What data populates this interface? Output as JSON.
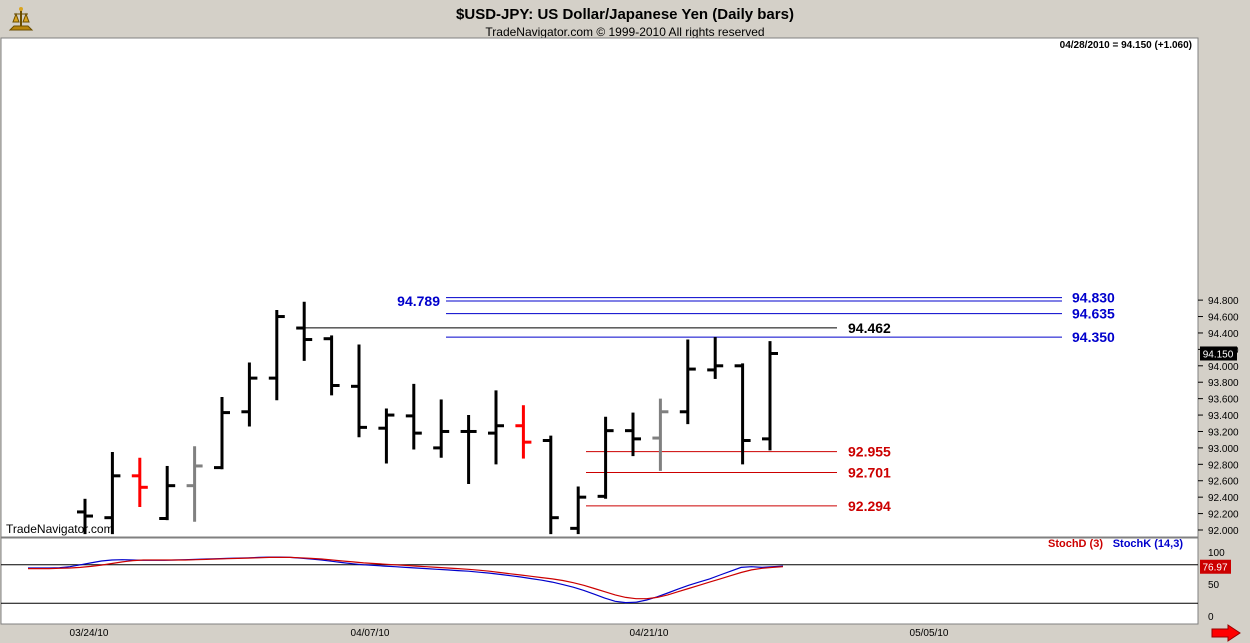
{
  "header": {
    "title": "$USD-JPY:  US Dollar/Japanese Yen  (Daily bars)",
    "copyright": "TradeNavigator.com © 1999-2010 All rights reserved",
    "last_bar": "04/28/2010 = 94.150 (+1.060)",
    "watermark": "TradeNavigator.com"
  },
  "colors": {
    "background": "#ffffff",
    "frame": "#d4d0c8",
    "bar_default": "#000000",
    "bar_red": "#ff0000",
    "bar_gray": "#808080",
    "level_blue": "#0000cc",
    "level_red": "#cc0000",
    "stoch_d": "#cc0000",
    "stoch_k": "#0000cc"
  },
  "chart_data": {
    "type": "ohlc",
    "ylim": [
      91.98,
      95.0
    ],
    "y_ticks": [
      "92.000",
      "92.200",
      "92.400",
      "92.600",
      "92.800",
      "93.000",
      "93.200",
      "93.400",
      "93.600",
      "93.800",
      "94.000",
      "94.200",
      "94.400",
      "94.600",
      "94.800"
    ],
    "x_ticks": [
      "03/24/10",
      "04/07/10",
      "04/21/10",
      "05/05/10"
    ],
    "last_price_label": "94.150",
    "bars": [
      {
        "high": 92.38,
        "low": 91.95,
        "open": 92.22,
        "close": 92.17,
        "color": "black"
      },
      {
        "high": 92.95,
        "low": 91.95,
        "open": 92.15,
        "close": 92.66,
        "color": "black"
      },
      {
        "high": 92.88,
        "low": 92.28,
        "open": 92.66,
        "close": 92.52,
        "color": "red"
      },
      {
        "high": 92.78,
        "low": 92.12,
        "open": 92.14,
        "close": 92.54,
        "color": "black"
      },
      {
        "high": 93.02,
        "low": 92.1,
        "open": 92.54,
        "close": 92.78,
        "color": "gray"
      },
      {
        "high": 93.62,
        "low": 92.74,
        "open": 92.76,
        "close": 93.43,
        "color": "black"
      },
      {
        "high": 94.04,
        "low": 93.26,
        "open": 93.44,
        "close": 93.85,
        "color": "black"
      },
      {
        "high": 94.68,
        "low": 93.58,
        "open": 93.85,
        "close": 94.6,
        "color": "black"
      },
      {
        "high": 94.78,
        "low": 94.06,
        "open": 94.46,
        "close": 94.32,
        "color": "black"
      },
      {
        "high": 94.37,
        "low": 93.64,
        "open": 94.33,
        "close": 93.76,
        "color": "black"
      },
      {
        "high": 94.26,
        "low": 93.13,
        "open": 93.75,
        "close": 93.25,
        "color": "black"
      },
      {
        "high": 93.48,
        "low": 92.81,
        "open": 93.24,
        "close": 93.4,
        "color": "black"
      },
      {
        "high": 93.78,
        "low": 92.98,
        "open": 93.39,
        "close": 93.18,
        "color": "black"
      },
      {
        "high": 93.59,
        "low": 92.88,
        "open": 93.0,
        "close": 93.2,
        "color": "black"
      },
      {
        "high": 93.4,
        "low": 92.56,
        "open": 93.2,
        "close": 93.2,
        "color": "black"
      },
      {
        "high": 93.7,
        "low": 92.8,
        "open": 93.18,
        "close": 93.27,
        "color": "black"
      },
      {
        "high": 93.52,
        "low": 92.87,
        "open": 93.27,
        "close": 93.07,
        "color": "red"
      },
      {
        "high": 93.15,
        "low": 91.95,
        "open": 93.09,
        "close": 92.15,
        "color": "black"
      },
      {
        "high": 92.53,
        "low": 91.95,
        "open": 92.02,
        "close": 92.4,
        "color": "black"
      },
      {
        "high": 93.38,
        "low": 92.38,
        "open": 92.41,
        "close": 93.21,
        "color": "black"
      },
      {
        "high": 93.43,
        "low": 92.9,
        "open": 93.21,
        "close": 93.11,
        "color": "black"
      },
      {
        "high": 93.6,
        "low": 92.72,
        "open": 93.12,
        "close": 93.44,
        "color": "gray"
      },
      {
        "high": 94.32,
        "low": 93.29,
        "open": 93.44,
        "close": 93.96,
        "color": "black"
      },
      {
        "high": 94.35,
        "low": 93.84,
        "open": 93.95,
        "close": 94.0,
        "color": "black"
      },
      {
        "high": 94.03,
        "low": 92.8,
        "open": 94.0,
        "close": 93.09,
        "color": "black"
      },
      {
        "high": 94.3,
        "low": 92.97,
        "open": 93.11,
        "close": 94.15,
        "color": "black"
      }
    ],
    "levels": [
      {
        "value": 94.83,
        "label": "94.830",
        "color": "blue",
        "label_side": "right",
        "from_bar": 16.3,
        "to_bar": 38
      },
      {
        "value": 94.789,
        "label": "94.789",
        "color": "blue",
        "label_side": "left",
        "from_bar": 16.3,
        "to_bar": 38
      },
      {
        "value": 94.635,
        "label": "94.635",
        "color": "blue",
        "label_side": "right",
        "from_bar": 16.3,
        "to_bar": 38
      },
      {
        "value": 94.462,
        "label": "94.462",
        "color": "black",
        "label_side": "mid",
        "from_bar": 8.0,
        "to_bar": 30
      },
      {
        "value": 94.35,
        "label": "94.350",
        "color": "blue",
        "label_side": "right",
        "from_bar": 16.3,
        "to_bar": 38
      },
      {
        "value": 92.955,
        "label": "92.955",
        "color": "red",
        "label_side": "mid",
        "from_bar": 18.8,
        "to_bar": 30
      },
      {
        "value": 92.701,
        "label": "92.701",
        "color": "red",
        "label_side": "mid",
        "from_bar": 18.8,
        "to_bar": 30
      },
      {
        "value": 92.294,
        "label": "92.294",
        "color": "red",
        "label_side": "mid",
        "from_bar": 18.8,
        "to_bar": 30
      }
    ],
    "stochastic": {
      "ylim": [
        0,
        100
      ],
      "y_ticks": [
        "100",
        "50",
        "0"
      ],
      "reference_lines": [
        80,
        20
      ],
      "legend_d": "StochD (3)",
      "legend_k": "StochK (14,3)",
      "last_value": "76.97",
      "stoch_d": [
        74,
        74,
        74,
        74.5,
        75,
        76,
        77.5,
        79.5,
        82,
        84.5,
        86.5,
        87.5,
        87.5,
        87.5,
        87.5,
        87.5,
        88,
        88.5,
        89,
        89.5,
        90,
        90.5,
        91,
        91.5,
        91.5,
        91.5,
        91,
        90,
        89,
        87.5,
        86,
        84.5,
        83,
        82,
        81,
        80,
        79,
        78,
        77,
        76,
        75,
        74,
        73,
        71.5,
        70,
        68,
        66,
        64,
        62,
        60,
        58,
        55.5,
        52,
        48,
        43,
        38,
        33,
        29,
        27,
        27,
        29,
        33,
        38,
        43,
        48,
        53,
        58,
        63,
        68,
        72,
        74.5,
        76,
        76.97
      ],
      "stoch_k": [
        75,
        75,
        75,
        75.5,
        77,
        80,
        83,
        86,
        87.5,
        88,
        87.5,
        87,
        87,
        87,
        87.5,
        88,
        88.5,
        89,
        89.5,
        90,
        90.5,
        91,
        91.5,
        92,
        92,
        91.5,
        90.5,
        89,
        87.5,
        85.5,
        83.5,
        81.5,
        80,
        79,
        78,
        77,
        76,
        75,
        74,
        73,
        72,
        71,
        70,
        68.5,
        67,
        65,
        63,
        61,
        58.5,
        56,
        53,
        49,
        45,
        40,
        34,
        28,
        23,
        21,
        21.5,
        25,
        30,
        36,
        42,
        48,
        53,
        58,
        64,
        70,
        76,
        77,
        76,
        77,
        78
      ]
    }
  }
}
